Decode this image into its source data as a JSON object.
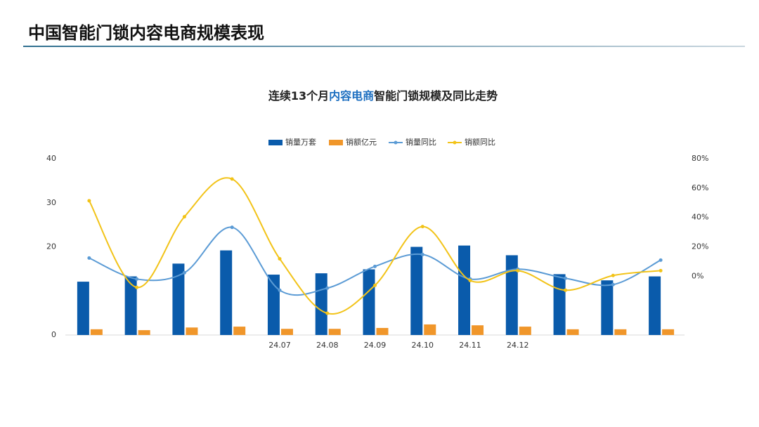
{
  "header": {
    "title": "中国智能门锁内容电商规模表现"
  },
  "chart_data": {
    "type": "bar-line",
    "title": [
      "连续13个月",
      "内容电商",
      "智能门锁规模及同比走势"
    ],
    "categories": [
      null,
      null,
      null,
      null,
      "24.07",
      "24.08",
      "24.09",
      "24.10",
      "24.11",
      "24.12",
      null,
      null,
      null
    ],
    "series": [
      {
        "name": "销量万套",
        "type": "bar",
        "color": "#0a5bab",
        "values": [
          12.1,
          13.3,
          16.2,
          19.2,
          13.7,
          14.0,
          14.9,
          20.0,
          20.3,
          18.1,
          13.8,
          12.4,
          13.3
        ]
      },
      {
        "name": "销额亿元",
        "type": "bar",
        "color": "#f0962a",
        "values": [
          1.3,
          1.1,
          1.7,
          1.9,
          1.4,
          1.4,
          1.6,
          2.4,
          2.2,
          1.9,
          1.3,
          1.3,
          1.3
        ]
      },
      {
        "name": "销量同比",
        "type": "line",
        "axis": "y2",
        "color": "#5b9bd5",
        "values": [
          12.4,
          -1.9,
          2.4,
          33.3,
          -9.5,
          -8.1,
          6.7,
          14.8,
          -1.9,
          4.8,
          -1.4,
          -5.7,
          11.0
        ]
      },
      {
        "name": "销额同比",
        "type": "line",
        "axis": "y2",
        "color": "#f2c318",
        "values": [
          51.4,
          -7.6,
          40.5,
          66.2,
          11.9,
          -25.2,
          -6.2,
          33.8,
          -2.9,
          3.8,
          -9.5,
          0.5,
          3.8
        ]
      }
    ],
    "ylim": [
      0,
      40
    ],
    "yticks": [
      0,
      20,
      30,
      40
    ],
    "y2lim": [
      -40,
      80
    ],
    "y2ticks": [
      {
        "value": 0,
        "label": "0%"
      },
      {
        "value": 20,
        "label": "20%"
      },
      {
        "value": 40,
        "label": "40%"
      },
      {
        "value": 60,
        "label": "60%"
      },
      {
        "value": 80,
        "label": "80%"
      }
    ],
    "legend": "top"
  }
}
